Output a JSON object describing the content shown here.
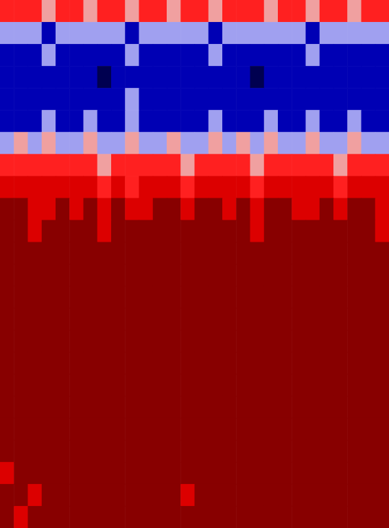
{
  "chart_data": {
    "type": "heatmap",
    "tick_labels": false,
    "xlim": [
      0,
      28
    ],
    "ylim": [
      0,
      24
    ],
    "cells": [
      [
        0.62,
        0.55,
        0.6,
        0.48,
        0.58,
        0.62,
        0.5,
        0.6,
        0.57,
        0.45,
        0.6,
        0.62,
        0.52,
        0.58,
        0.6,
        0.47,
        0.6,
        0.55,
        0.62,
        0.5,
        0.58,
        0.6,
        0.46,
        0.57,
        0.6,
        0.52,
        0.6,
        0.58
      ],
      [
        0.38,
        0.32,
        0.4,
        0.28,
        0.35,
        0.42,
        0.3,
        0.36,
        0.33,
        0.26,
        0.4,
        0.35,
        0.3,
        0.38,
        0.34,
        0.27,
        0.4,
        0.33,
        0.37,
        0.3,
        0.36,
        0.39,
        0.28,
        0.35,
        0.41,
        0.31,
        0.37,
        0.34
      ],
      [
        0.2,
        0.24,
        0.18,
        0.33,
        0.22,
        0.2,
        0.27,
        0.19,
        0.23,
        0.36,
        0.2,
        0.22,
        0.25,
        0.18,
        0.21,
        0.34,
        0.2,
        0.24,
        0.19,
        0.28,
        0.22,
        0.2,
        0.35,
        0.21,
        0.19,
        0.26,
        0.2,
        0.23
      ],
      [
        0.15,
        0.18,
        0.12,
        0.22,
        0.16,
        0.14,
        0.2,
        0.09,
        0.17,
        0.25,
        0.13,
        0.15,
        0.19,
        0.12,
        0.16,
        0.24,
        0.14,
        0.17,
        0.08,
        0.21,
        0.15,
        0.13,
        0.23,
        0.16,
        0.11,
        0.19,
        0.15,
        0.17
      ],
      [
        0.17,
        0.2,
        0.14,
        0.26,
        0.18,
        0.15,
        0.22,
        0.12,
        0.19,
        0.3,
        0.15,
        0.17,
        0.21,
        0.14,
        0.18,
        0.28,
        0.16,
        0.19,
        0.13,
        0.24,
        0.17,
        0.15,
        0.27,
        0.18,
        0.14,
        0.21,
        0.17,
        0.19
      ],
      [
        0.24,
        0.28,
        0.2,
        0.35,
        0.25,
        0.22,
        0.3,
        0.2,
        0.26,
        0.38,
        0.22,
        0.25,
        0.29,
        0.21,
        0.26,
        0.36,
        0.23,
        0.27,
        0.2,
        0.32,
        0.25,
        0.22,
        0.36,
        0.26,
        0.21,
        0.3,
        0.24,
        0.27
      ],
      [
        0.4,
        0.46,
        0.35,
        0.5,
        0.42,
        0.38,
        0.47,
        0.36,
        0.44,
        0.52,
        0.38,
        0.43,
        0.46,
        0.37,
        0.42,
        0.5,
        0.4,
        0.45,
        0.34,
        0.48,
        0.41,
        0.38,
        0.51,
        0.43,
        0.37,
        0.47,
        0.4,
        0.44
      ],
      [
        0.6,
        0.66,
        0.55,
        0.64,
        0.62,
        0.57,
        0.68,
        0.5,
        0.63,
        0.58,
        0.55,
        0.64,
        0.6,
        0.52,
        0.62,
        0.66,
        0.58,
        0.63,
        0.48,
        0.65,
        0.6,
        0.56,
        0.62,
        0.63,
        0.5,
        0.66,
        0.6,
        0.62
      ],
      [
        0.76,
        0.8,
        0.7,
        0.74,
        0.78,
        0.72,
        0.82,
        0.66,
        0.77,
        0.68,
        0.72,
        0.8,
        0.75,
        0.68,
        0.78,
        0.8,
        0.73,
        0.79,
        0.64,
        0.8,
        0.76,
        0.7,
        0.72,
        0.78,
        0.66,
        0.81,
        0.75,
        0.78
      ],
      [
        0.86,
        0.88,
        0.8,
        0.84,
        0.88,
        0.82,
        0.9,
        0.76,
        0.87,
        0.8,
        0.83,
        0.88,
        0.86,
        0.78,
        0.88,
        0.89,
        0.84,
        0.88,
        0.74,
        0.9,
        0.86,
        0.8,
        0.82,
        0.88,
        0.77,
        0.9,
        0.85,
        0.78
      ],
      [
        0.9,
        0.92,
        0.82,
        0.9,
        0.92,
        0.88,
        0.93,
        0.84,
        0.91,
        0.87,
        0.89,
        0.92,
        0.9,
        0.86,
        0.92,
        0.93,
        0.89,
        0.92,
        0.83,
        0.93,
        0.9,
        0.87,
        0.88,
        0.92,
        0.85,
        0.93,
        0.9,
        0.8
      ],
      [
        0.93,
        0.95,
        0.9,
        0.94,
        0.95,
        0.92,
        0.95,
        0.9,
        0.94,
        0.92,
        0.93,
        0.95,
        0.94,
        0.91,
        0.95,
        0.95,
        0.93,
        0.95,
        0.9,
        0.95,
        0.94,
        0.92,
        0.93,
        0.95,
        0.91,
        0.95,
        0.94,
        0.9
      ],
      [
        0.95,
        0.95,
        0.95,
        0.95,
        0.95,
        0.95,
        0.95,
        0.95,
        0.95,
        0.95,
        0.95,
        0.95,
        0.95,
        0.95,
        0.95,
        0.95,
        0.95,
        0.95,
        0.95,
        0.95,
        0.95,
        0.95,
        0.95,
        0.95,
        0.95,
        0.95,
        0.95,
        0.95
      ],
      [
        0.95,
        0.95,
        0.95,
        0.95,
        0.95,
        0.95,
        0.95,
        0.95,
        0.95,
        0.95,
        0.95,
        0.95,
        0.95,
        0.95,
        0.95,
        0.95,
        0.95,
        0.95,
        0.95,
        0.95,
        0.95,
        0.95,
        0.95,
        0.95,
        0.95,
        0.95,
        0.95,
        0.95
      ],
      [
        0.95,
        0.95,
        0.95,
        0.95,
        0.95,
        0.95,
        0.95,
        0.95,
        0.95,
        0.95,
        0.95,
        0.95,
        0.95,
        0.95,
        0.95,
        0.95,
        0.95,
        0.95,
        0.95,
        0.95,
        0.95,
        0.95,
        0.95,
        0.95,
        0.95,
        0.95,
        0.95,
        0.95
      ],
      [
        0.95,
        0.95,
        0.95,
        0.95,
        0.95,
        0.95,
        0.95,
        0.95,
        0.95,
        0.95,
        0.95,
        0.95,
        0.95,
        0.95,
        0.95,
        0.95,
        0.95,
        0.95,
        0.95,
        0.95,
        0.95,
        0.95,
        0.95,
        0.95,
        0.95,
        0.95,
        0.95,
        0.95
      ],
      [
        0.95,
        0.95,
        0.95,
        0.95,
        0.95,
        0.95,
        0.95,
        0.95,
        0.95,
        0.95,
        0.95,
        0.95,
        0.95,
        0.95,
        0.95,
        0.95,
        0.95,
        0.95,
        0.95,
        0.95,
        0.95,
        0.95,
        0.95,
        0.95,
        0.95,
        0.95,
        0.95,
        0.95
      ],
      [
        0.95,
        0.95,
        0.95,
        0.95,
        0.95,
        0.95,
        0.95,
        0.95,
        0.95,
        0.95,
        0.95,
        0.95,
        0.95,
        0.95,
        0.95,
        0.95,
        0.95,
        0.95,
        0.95,
        0.95,
        0.95,
        0.95,
        0.95,
        0.95,
        0.95,
        0.95,
        0.95,
        0.95
      ],
      [
        0.95,
        0.95,
        0.95,
        0.95,
        0.95,
        0.95,
        0.95,
        0.95,
        0.95,
        0.95,
        0.95,
        0.95,
        0.95,
        0.95,
        0.95,
        0.95,
        0.95,
        0.95,
        0.95,
        0.95,
        0.95,
        0.95,
        0.95,
        0.95,
        0.95,
        0.95,
        0.95,
        0.95
      ],
      [
        0.95,
        0.95,
        0.95,
        0.95,
        0.95,
        0.95,
        0.95,
        0.95,
        0.95,
        0.95,
        0.95,
        0.95,
        0.95,
        0.95,
        0.95,
        0.95,
        0.95,
        0.95,
        0.95,
        0.95,
        0.95,
        0.95,
        0.95,
        0.95,
        0.95,
        0.95,
        0.95,
        0.95
      ],
      [
        0.95,
        0.95,
        0.95,
        0.95,
        0.95,
        0.95,
        0.95,
        0.95,
        0.95,
        0.95,
        0.95,
        0.95,
        0.95,
        0.95,
        0.95,
        0.95,
        0.95,
        0.95,
        0.95,
        0.95,
        0.95,
        0.95,
        0.95,
        0.95,
        0.95,
        0.95,
        0.95,
        0.95
      ],
      [
        0.8,
        0.95,
        0.95,
        0.95,
        0.95,
        0.95,
        0.95,
        0.95,
        0.95,
        0.95,
        0.95,
        0.95,
        0.95,
        0.95,
        0.95,
        0.95,
        0.95,
        0.95,
        0.95,
        0.95,
        0.95,
        0.95,
        0.95,
        0.95,
        0.95,
        0.95,
        0.95,
        0.95
      ],
      [
        0.95,
        0.95,
        0.8,
        0.95,
        0.95,
        0.95,
        0.95,
        0.95,
        0.95,
        0.95,
        0.95,
        0.95,
        0.95,
        0.8,
        0.95,
        0.95,
        0.95,
        0.95,
        0.95,
        0.95,
        0.95,
        0.95,
        0.95,
        0.95,
        0.95,
        0.95,
        0.95,
        0.95
      ],
      [
        0.95,
        0.8,
        0.95,
        0.95,
        0.95,
        0.95,
        0.95,
        0.95,
        0.95,
        0.95,
        0.95,
        0.95,
        0.95,
        0.95,
        0.95,
        0.95,
        0.95,
        0.95,
        0.95,
        0.95,
        0.95,
        0.95,
        0.95,
        0.95,
        0.95,
        0.95,
        0.95,
        0.95
      ]
    ]
  }
}
